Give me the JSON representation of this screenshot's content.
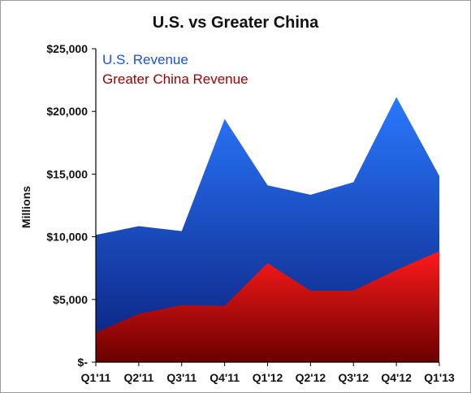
{
  "chart_data": {
    "type": "area",
    "title": "U.S. vs Greater China",
    "xlabel": "",
    "ylabel": "Millions",
    "categories": [
      "Q1'11",
      "Q2'11",
      "Q3'11",
      "Q4'11",
      "Q1'12",
      "Q2'12",
      "Q3'12",
      "Q4'12",
      "Q1'13"
    ],
    "ylim": [
      0,
      25000
    ],
    "y_ticks": [
      0,
      5000,
      10000,
      15000,
      20000,
      25000
    ],
    "y_tick_labels": [
      "$-",
      "$5,000",
      "$10,000",
      "$15,000",
      "$20,000",
      "$25,000"
    ],
    "stacked": false,
    "grid": false,
    "legend_position": "top-left",
    "series": [
      {
        "name": "U.S. Revenue",
        "values": [
          10150,
          10850,
          10450,
          19400,
          14100,
          13350,
          14350,
          21150,
          14850
        ],
        "color": "#1a5fe0"
      },
      {
        "name": "Greater China Revenue",
        "values": [
          2350,
          3850,
          4550,
          4500,
          7900,
          5700,
          5700,
          7350,
          8850
        ],
        "color": "#e00000"
      }
    ]
  }
}
